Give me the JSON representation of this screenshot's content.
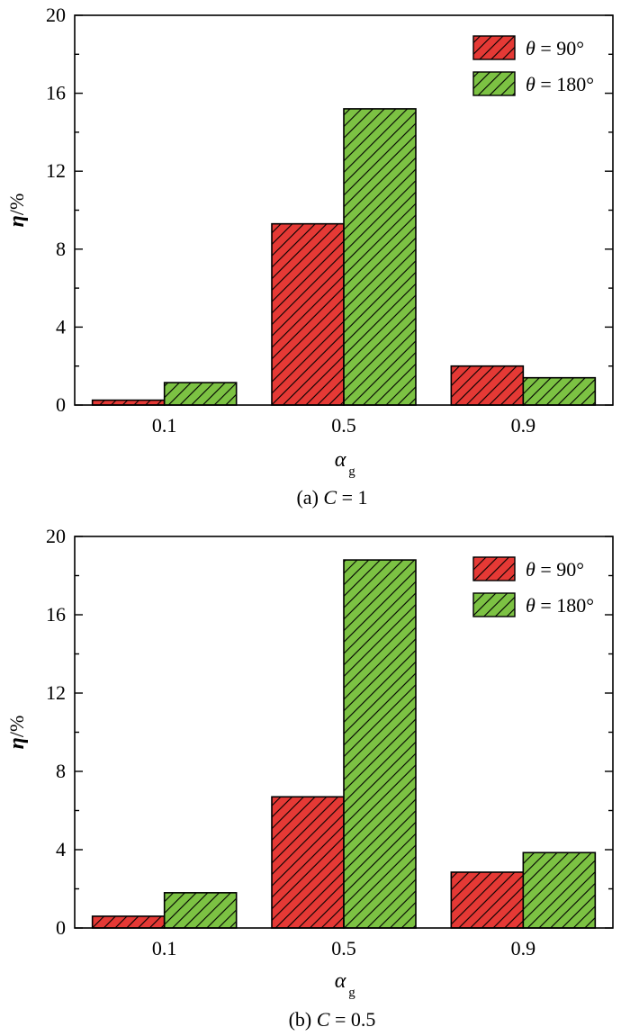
{
  "colors": {
    "theta90": "#e53935",
    "theta180": "#7cc243",
    "hatch": "#000000",
    "axis": "#000000"
  },
  "chart_data": [
    {
      "type": "bar",
      "caption_prefix": "(a) ",
      "caption_var": "C",
      "caption_value": " = 1",
      "categories": [
        "0.1",
        "0.5",
        "0.9"
      ],
      "series": [
        {
          "name": "θ = 90°",
          "var": "θ",
          "value": " = 90°",
          "color_key": "theta90",
          "values": [
            0.25,
            9.3,
            2.0
          ]
        },
        {
          "name": "θ = 180°",
          "var": "θ",
          "value": " = 180°",
          "color_key": "theta180",
          "values": [
            1.15,
            15.2,
            1.4
          ]
        }
      ],
      "ylabel": "η/%",
      "ylabel_var": "η",
      "ylabel_unit": "/%",
      "xlabel_var": "α",
      "xlabel_sub": "g",
      "ylim": [
        0,
        20
      ],
      "yticks": [
        "0",
        "4",
        "8",
        "12",
        "16",
        "20"
      ],
      "grid": false,
      "legend": "top-right"
    },
    {
      "type": "bar",
      "caption_prefix": "(b) ",
      "caption_var": "C",
      "caption_value": " = 0.5",
      "categories": [
        "0.1",
        "0.5",
        "0.9"
      ],
      "series": [
        {
          "name": "θ = 90°",
          "var": "θ",
          "value": " = 90°",
          "color_key": "theta90",
          "values": [
            0.6,
            6.7,
            2.85
          ]
        },
        {
          "name": "θ = 180°",
          "var": "θ",
          "value": " = 180°",
          "color_key": "theta180",
          "values": [
            1.8,
            18.8,
            3.85
          ]
        }
      ],
      "ylabel": "η/%",
      "ylabel_var": "η",
      "ylabel_unit": "/%",
      "xlabel_var": "α",
      "xlabel_sub": "g",
      "ylim": [
        0,
        20
      ],
      "yticks": [
        "0",
        "4",
        "8",
        "12",
        "16",
        "20"
      ],
      "grid": false,
      "legend": "top-right"
    }
  ]
}
